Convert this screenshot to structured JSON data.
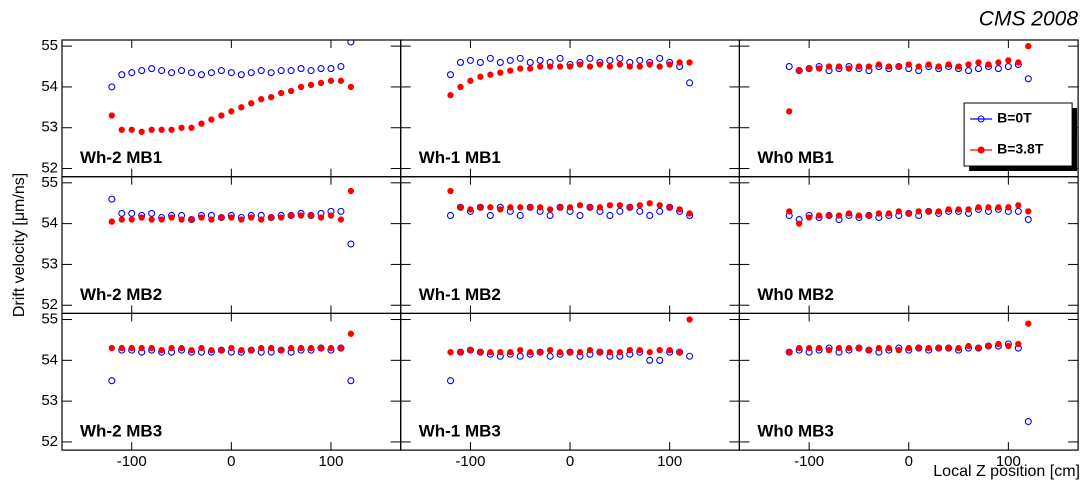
{
  "title": "CMS 2008",
  "ylabel": "Drift velocity  [μm/ns]",
  "xlabel": "Local Z position [cm]",
  "chart_data": [
    {
      "type": "scatter",
      "title": "Wh-2 MB1",
      "x": [
        -120,
        -110,
        -100,
        -90,
        -80,
        -70,
        -60,
        -50,
        -40,
        -30,
        -20,
        -10,
        0,
        10,
        20,
        30,
        40,
        50,
        60,
        70,
        80,
        90,
        100,
        110,
        120
      ],
      "xlim": [
        -170,
        170
      ],
      "ylim": [
        51.8,
        55.15
      ],
      "xticks": [
        -100,
        0,
        100
      ],
      "yticks": [
        52,
        53,
        54,
        55
      ],
      "series": [
        {
          "color": "#0000ff",
          "values": [
            54.0,
            54.3,
            54.35,
            54.4,
            54.45,
            54.4,
            54.35,
            54.4,
            54.35,
            54.3,
            54.35,
            54.4,
            54.35,
            54.3,
            54.35,
            54.4,
            54.35,
            54.4,
            54.4,
            54.45,
            54.4,
            54.45,
            54.45,
            54.5,
            55.1
          ]
        },
        {
          "color": "#ff0000",
          "values": [
            53.3,
            52.95,
            52.95,
            52.9,
            52.95,
            52.95,
            52.95,
            53.0,
            53.0,
            53.1,
            53.2,
            53.3,
            53.4,
            53.5,
            53.6,
            53.7,
            53.75,
            53.85,
            53.9,
            54.0,
            54.05,
            54.1,
            54.15,
            54.15,
            54.0
          ]
        }
      ]
    },
    {
      "type": "scatter",
      "title": "Wh-1 MB1",
      "x": [
        -120,
        -110,
        -100,
        -90,
        -80,
        -70,
        -60,
        -50,
        -40,
        -30,
        -20,
        -10,
        0,
        10,
        20,
        30,
        40,
        50,
        60,
        70,
        80,
        90,
        100,
        110,
        120
      ],
      "xlim": [
        -170,
        170
      ],
      "ylim": [
        51.8,
        55.15
      ],
      "xticks": [
        -100,
        0,
        100
      ],
      "yticks": [
        52,
        53,
        54,
        55
      ],
      "series": [
        {
          "color": "#0000ff",
          "values": [
            54.3,
            54.6,
            54.65,
            54.6,
            54.7,
            54.6,
            54.65,
            54.7,
            54.6,
            54.65,
            54.6,
            54.7,
            54.55,
            54.6,
            54.7,
            54.6,
            54.65,
            54.7,
            54.6,
            54.65,
            54.6,
            54.7,
            54.6,
            54.5,
            54.1
          ]
        },
        {
          "color": "#ff0000",
          "values": [
            53.8,
            54.0,
            54.15,
            54.25,
            54.3,
            54.35,
            54.4,
            54.45,
            54.45,
            54.5,
            54.5,
            54.5,
            54.5,
            54.55,
            54.5,
            54.55,
            54.5,
            54.55,
            54.5,
            54.5,
            54.55,
            54.5,
            54.55,
            54.6,
            54.6
          ]
        }
      ]
    },
    {
      "type": "scatter",
      "title": "Wh0 MB1",
      "x": [
        -120,
        -110,
        -100,
        -90,
        -80,
        -70,
        -60,
        -50,
        -40,
        -30,
        -20,
        -10,
        0,
        10,
        20,
        30,
        40,
        50,
        60,
        70,
        80,
        90,
        100,
        110,
        120
      ],
      "xlim": [
        -170,
        170
      ],
      "ylim": [
        51.8,
        55.15
      ],
      "xticks": [
        -100,
        0,
        100
      ],
      "yticks": [
        52,
        53,
        54,
        55
      ],
      "legend": "right",
      "series": [
        {
          "name": "B=0T",
          "color": "#0000ff",
          "values": [
            54.5,
            54.4,
            54.45,
            54.5,
            54.4,
            54.45,
            54.5,
            54.45,
            54.4,
            54.5,
            54.45,
            54.5,
            54.45,
            54.4,
            54.5,
            54.45,
            54.5,
            54.45,
            54.4,
            54.45,
            54.5,
            54.45,
            54.5,
            54.55,
            54.2
          ]
        },
        {
          "name": "B=3.8T",
          "color": "#ff0000",
          "values": [
            53.4,
            54.4,
            54.45,
            54.45,
            54.5,
            54.5,
            54.45,
            54.5,
            54.5,
            54.55,
            54.5,
            54.5,
            54.55,
            54.5,
            54.55,
            54.5,
            54.55,
            54.5,
            54.55,
            54.6,
            54.55,
            54.6,
            54.65,
            54.6,
            55.0
          ]
        }
      ]
    },
    {
      "type": "scatter",
      "title": "Wh-2 MB2",
      "x": [
        -120,
        -110,
        -100,
        -90,
        -80,
        -70,
        -60,
        -50,
        -40,
        -30,
        -20,
        -10,
        0,
        10,
        20,
        30,
        40,
        50,
        60,
        70,
        80,
        90,
        100,
        110,
        120
      ],
      "xlim": [
        -170,
        170
      ],
      "ylim": [
        51.8,
        55.15
      ],
      "xticks": [
        -100,
        0,
        100
      ],
      "yticks": [
        52,
        53,
        54,
        55
      ],
      "series": [
        {
          "color": "#0000ff",
          "values": [
            54.6,
            54.25,
            54.25,
            54.2,
            54.25,
            54.15,
            54.2,
            54.2,
            54.1,
            54.2,
            54.2,
            54.15,
            54.2,
            54.15,
            54.2,
            54.2,
            54.15,
            54.2,
            54.2,
            54.25,
            54.2,
            54.25,
            54.3,
            54.3,
            53.5
          ]
        },
        {
          "color": "#ff0000",
          "values": [
            54.05,
            54.1,
            54.1,
            54.15,
            54.1,
            54.1,
            54.15,
            54.1,
            54.1,
            54.15,
            54.1,
            54.15,
            54.15,
            54.1,
            54.15,
            54.1,
            54.15,
            54.15,
            54.2,
            54.2,
            54.2,
            54.15,
            54.2,
            54.1,
            54.8
          ]
        }
      ]
    },
    {
      "type": "scatter",
      "title": "Wh-1 MB2",
      "x": [
        -120,
        -110,
        -100,
        -90,
        -80,
        -70,
        -60,
        -50,
        -40,
        -30,
        -20,
        -10,
        0,
        10,
        20,
        30,
        40,
        50,
        60,
        70,
        80,
        90,
        100,
        110,
        120
      ],
      "xlim": [
        -170,
        170
      ],
      "ylim": [
        51.8,
        55.15
      ],
      "xticks": [
        -100,
        0,
        100
      ],
      "yticks": [
        52,
        53,
        54,
        55
      ],
      "series": [
        {
          "color": "#0000ff",
          "values": [
            54.2,
            54.4,
            54.3,
            54.4,
            54.2,
            54.4,
            54.3,
            54.2,
            54.4,
            54.3,
            54.2,
            54.4,
            54.3,
            54.2,
            54.4,
            54.3,
            54.2,
            54.3,
            54.4,
            54.3,
            54.2,
            54.3,
            54.4,
            54.3,
            54.2
          ]
        },
        {
          "color": "#ff0000",
          "values": [
            54.8,
            54.4,
            54.35,
            54.4,
            54.4,
            54.35,
            54.4,
            54.4,
            54.4,
            54.4,
            54.35,
            54.4,
            54.4,
            54.45,
            54.4,
            54.4,
            54.45,
            54.45,
            54.4,
            54.45,
            54.5,
            54.45,
            54.4,
            54.35,
            54.25
          ]
        }
      ]
    },
    {
      "type": "scatter",
      "title": "Wh0 MB2",
      "x": [
        -120,
        -110,
        -100,
        -90,
        -80,
        -70,
        -60,
        -50,
        -40,
        -30,
        -20,
        -10,
        0,
        10,
        20,
        30,
        40,
        50,
        60,
        70,
        80,
        90,
        100,
        110,
        120
      ],
      "xlim": [
        -170,
        170
      ],
      "ylim": [
        51.8,
        55.15
      ],
      "xticks": [
        -100,
        0,
        100
      ],
      "yticks": [
        52,
        53,
        54,
        55
      ],
      "series": [
        {
          "color": "#0000ff",
          "values": [
            54.2,
            54.1,
            54.2,
            54.15,
            54.2,
            54.1,
            54.2,
            54.15,
            54.2,
            54.15,
            54.2,
            54.2,
            54.25,
            54.2,
            54.3,
            54.25,
            54.3,
            54.3,
            54.25,
            54.35,
            54.3,
            54.35,
            54.3,
            54.3,
            54.1
          ]
        },
        {
          "color": "#ff0000",
          "values": [
            54.3,
            54.0,
            54.15,
            54.2,
            54.2,
            54.2,
            54.25,
            54.2,
            54.2,
            54.25,
            54.25,
            54.3,
            54.25,
            54.3,
            54.3,
            54.3,
            54.35,
            54.35,
            54.35,
            54.4,
            54.4,
            54.4,
            54.4,
            54.45,
            54.3
          ]
        }
      ]
    },
    {
      "type": "scatter",
      "title": "Wh-2 MB3",
      "x": [
        -120,
        -110,
        -100,
        -90,
        -80,
        -70,
        -60,
        -50,
        -40,
        -30,
        -20,
        -10,
        0,
        10,
        20,
        30,
        40,
        50,
        60,
        70,
        80,
        90,
        100,
        110,
        120
      ],
      "xlim": [
        -170,
        170
      ],
      "ylim": [
        51.8,
        55.15
      ],
      "xticks": [
        -100,
        0,
        100
      ],
      "yticks": [
        52,
        53,
        54,
        55
      ],
      "series": [
        {
          "color": "#0000ff",
          "values": [
            53.5,
            54.25,
            54.25,
            54.2,
            54.25,
            54.2,
            54.2,
            54.25,
            54.2,
            54.2,
            54.2,
            54.25,
            54.2,
            54.2,
            54.25,
            54.2,
            54.2,
            54.25,
            54.2,
            54.25,
            54.25,
            54.3,
            54.25,
            54.3,
            53.5
          ]
        },
        {
          "color": "#ff0000",
          "values": [
            54.3,
            54.3,
            54.3,
            54.3,
            54.3,
            54.25,
            54.3,
            54.3,
            54.25,
            54.3,
            54.25,
            54.25,
            54.3,
            54.25,
            54.25,
            54.3,
            54.3,
            54.25,
            54.3,
            54.3,
            54.3,
            54.3,
            54.3,
            54.3,
            54.65
          ]
        }
      ]
    },
    {
      "type": "scatter",
      "title": "Wh-1 MB3",
      "x": [
        -120,
        -110,
        -100,
        -90,
        -80,
        -70,
        -60,
        -50,
        -40,
        -30,
        -20,
        -10,
        0,
        10,
        20,
        30,
        40,
        50,
        60,
        70,
        80,
        90,
        100,
        110,
        120
      ],
      "xlim": [
        -170,
        170
      ],
      "ylim": [
        51.8,
        55.15
      ],
      "xticks": [
        -100,
        0,
        100
      ],
      "yticks": [
        52,
        53,
        54,
        55
      ],
      "series": [
        {
          "color": "#0000ff",
          "values": [
            53.5,
            54.2,
            54.25,
            54.2,
            54.15,
            54.1,
            54.15,
            54.1,
            54.15,
            54.2,
            54.1,
            54.15,
            54.2,
            54.1,
            54.15,
            54.2,
            54.1,
            54.1,
            54.15,
            54.2,
            54.0,
            54.0,
            54.2,
            54.2,
            54.1
          ]
        },
        {
          "color": "#ff0000",
          "values": [
            54.2,
            54.2,
            54.25,
            54.2,
            54.2,
            54.2,
            54.2,
            54.25,
            54.2,
            54.2,
            54.25,
            54.2,
            54.2,
            54.2,
            54.25,
            54.2,
            54.2,
            54.2,
            54.25,
            54.25,
            54.2,
            54.25,
            54.25,
            54.2,
            55.0
          ]
        }
      ]
    },
    {
      "type": "scatter",
      "title": "Wh0 MB3",
      "x": [
        -120,
        -110,
        -100,
        -90,
        -80,
        -70,
        -60,
        -50,
        -40,
        -30,
        -20,
        -10,
        0,
        10,
        20,
        30,
        40,
        50,
        60,
        70,
        80,
        90,
        100,
        110,
        120
      ],
      "xlim": [
        -170,
        170
      ],
      "ylim": [
        51.8,
        55.15
      ],
      "xticks": [
        -100,
        0,
        100
      ],
      "yticks": [
        52,
        53,
        54,
        55
      ],
      "series": [
        {
          "color": "#0000ff",
          "values": [
            54.2,
            54.25,
            54.2,
            54.25,
            54.3,
            54.2,
            54.25,
            54.3,
            54.25,
            54.2,
            54.25,
            54.3,
            54.25,
            54.3,
            54.25,
            54.3,
            54.3,
            54.25,
            54.3,
            54.3,
            54.35,
            54.35,
            54.4,
            54.3,
            52.5
          ]
        },
        {
          "color": "#ff0000",
          "values": [
            54.2,
            54.3,
            54.3,
            54.3,
            54.25,
            54.3,
            54.3,
            54.3,
            54.25,
            54.3,
            54.3,
            54.25,
            54.3,
            54.3,
            54.3,
            54.3,
            54.3,
            54.3,
            54.35,
            54.3,
            54.35,
            54.4,
            54.35,
            54.4,
            54.9
          ]
        }
      ]
    }
  ]
}
